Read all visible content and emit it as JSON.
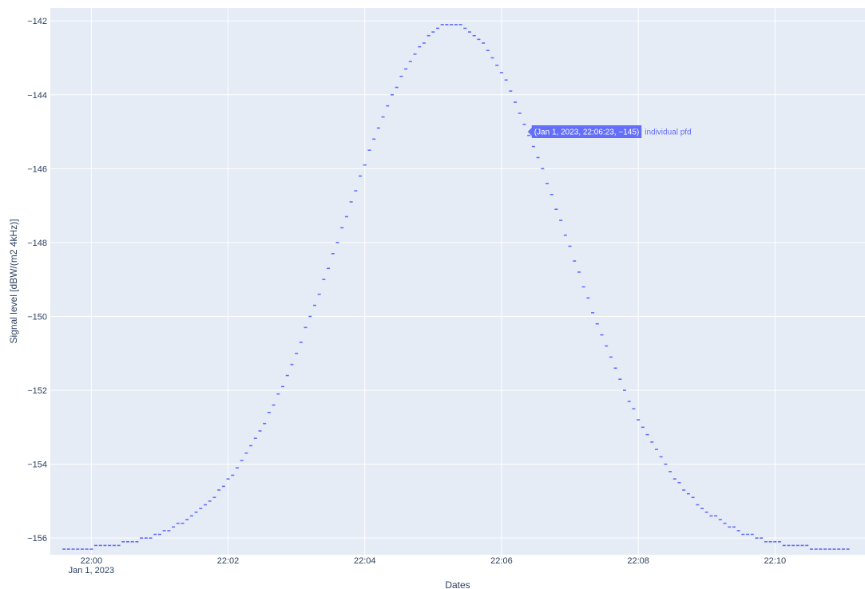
{
  "chart_data": {
    "type": "scatter",
    "title": "",
    "xlabel": "Dates",
    "ylabel": "Signal level [dBW/(m2 4kHz)]",
    "x_axis": {
      "type": "date",
      "range": [
        "2023-01-01 21:59:24",
        "2023-01-01 22:11:19"
      ],
      "ticks": [
        {
          "value": "2023-01-01 22:00:00",
          "label": "22:00",
          "sublabel": "Jan 1, 2023"
        },
        {
          "value": "2023-01-01 22:02:00",
          "label": "22:02",
          "sublabel": ""
        },
        {
          "value": "2023-01-01 22:04:00",
          "label": "22:04",
          "sublabel": ""
        },
        {
          "value": "2023-01-01 22:06:00",
          "label": "22:06",
          "sublabel": ""
        },
        {
          "value": "2023-01-01 22:08:00",
          "label": "22:08",
          "sublabel": ""
        },
        {
          "value": "2023-01-01 22:10:00",
          "label": "22:10",
          "sublabel": ""
        }
      ]
    },
    "y_axis": {
      "range": [
        -156.45,
        -141.65
      ],
      "ticks": [
        -142,
        -144,
        -146,
        -148,
        -150,
        -152,
        -154,
        -156
      ],
      "tick_labels": [
        "−142",
        "−144",
        "−146",
        "−148",
        "−150",
        "−152",
        "−154",
        "−156"
      ]
    },
    "grid": true,
    "series": [
      {
        "name": "individual pfd",
        "marker": "dash",
        "color": "#636efa",
        "x_start": "2023-01-01 21:59:36",
        "x_end": "2023-01-01 22:11:04",
        "x_step_seconds": 4,
        "peak_time": "2023-01-01 22:05:17",
        "peak_value": -142.1,
        "start_value": -156.3,
        "end_value": -156.3
      }
    ],
    "hover": {
      "label": "(Jan 1, 2023, 22:06:23, −145)",
      "series_name": "individual pfd",
      "x": "2023-01-01 22:06:23",
      "y": -145,
      "bg_color": "#636efa",
      "text_color": "#ffffff"
    },
    "colors": {
      "plot_bg": "#e5ecf6",
      "grid": "#ffffff",
      "text": "#2a3f5f",
      "series": "#636efa"
    }
  }
}
